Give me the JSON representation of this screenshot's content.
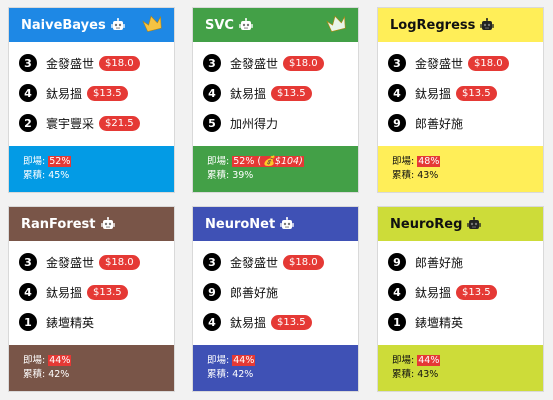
{
  "cards": [
    {
      "title": "NaiveBayes",
      "crowned": true,
      "header_bg": "#1e88e5",
      "header_color": "#ffffff",
      "footer_bg": "#039be5",
      "footer_color": "#ffffff",
      "picks": [
        {
          "num": "3",
          "name": "金發盛世",
          "odds": "$18.0"
        },
        {
          "num": "4",
          "name": "鈦易搵",
          "odds": "$13.5"
        },
        {
          "num": "2",
          "name": "寰宇豐采",
          "odds": "$21.5"
        }
      ],
      "footer_label1": "即場: ",
      "footer_pct": "52%",
      "footer_bonus": "",
      "footer_line2": "累積: 45%"
    },
    {
      "title": "SVC",
      "crowned": true,
      "header_bg": "#43a047",
      "header_color": "#ffffff",
      "footer_bg": "#43a047",
      "footer_color": "#ffffff",
      "picks": [
        {
          "num": "3",
          "name": "金發盛世",
          "odds": "$18.0"
        },
        {
          "num": "4",
          "name": "鈦易搵",
          "odds": "$13.5"
        },
        {
          "num": "5",
          "name": "加州得力",
          "odds": ""
        }
      ],
      "footer_label1": "即場: ",
      "footer_pct": "52% (",
      "footer_bonus": "💰$104)",
      "footer_line2": "累積: 39%"
    },
    {
      "title": "LogRegress",
      "crowned": false,
      "header_bg": "#ffee58",
      "header_color": "#111111",
      "footer_bg": "#ffee58",
      "footer_color": "#111111",
      "picks": [
        {
          "num": "3",
          "name": "金發盛世",
          "odds": "$18.0"
        },
        {
          "num": "4",
          "name": "鈦易搵",
          "odds": "$13.5"
        },
        {
          "num": "9",
          "name": "郎善好施",
          "odds": ""
        }
      ],
      "footer_label1": "即場: ",
      "footer_pct": "48%",
      "footer_bonus": "",
      "footer_line2": "累積: 43%"
    },
    {
      "title": "RanForest",
      "crowned": false,
      "header_bg": "#795548",
      "header_color": "#ffffff",
      "footer_bg": "#795548",
      "footer_color": "#ffffff",
      "picks": [
        {
          "num": "3",
          "name": "金發盛世",
          "odds": "$18.0"
        },
        {
          "num": "4",
          "name": "鈦易搵",
          "odds": "$13.5"
        },
        {
          "num": "1",
          "name": "錶壇精英",
          "odds": ""
        }
      ],
      "footer_label1": "即場: ",
      "footer_pct": "44%",
      "footer_bonus": "",
      "footer_line2": "累積: 42%"
    },
    {
      "title": "NeuroNet",
      "crowned": false,
      "header_bg": "#3f51b5",
      "header_color": "#ffffff",
      "footer_bg": "#3f51b5",
      "footer_color": "#ffffff",
      "picks": [
        {
          "num": "3",
          "name": "金發盛世",
          "odds": "$18.0"
        },
        {
          "num": "9",
          "name": "郎善好施",
          "odds": ""
        },
        {
          "num": "4",
          "name": "鈦易搵",
          "odds": "$13.5"
        }
      ],
      "footer_label1": "即場: ",
      "footer_pct": "44%",
      "footer_bonus": "",
      "footer_line2": "累積: 42%"
    },
    {
      "title": "NeuroReg",
      "crowned": false,
      "header_bg": "#cddc39",
      "header_color": "#111111",
      "footer_bg": "#cddc39",
      "footer_color": "#111111",
      "picks": [
        {
          "num": "9",
          "name": "郎善好施",
          "odds": ""
        },
        {
          "num": "4",
          "name": "鈦易搵",
          "odds": "$13.5"
        },
        {
          "num": "1",
          "name": "錶壇精英",
          "odds": ""
        }
      ],
      "footer_label1": "即場: ",
      "footer_pct": "44%",
      "footer_bonus": "",
      "footer_line2": "累積: 43%"
    }
  ],
  "icons": {
    "model": "robot-icon",
    "winner": "crown-icon"
  },
  "highlight_color": "#e53935"
}
